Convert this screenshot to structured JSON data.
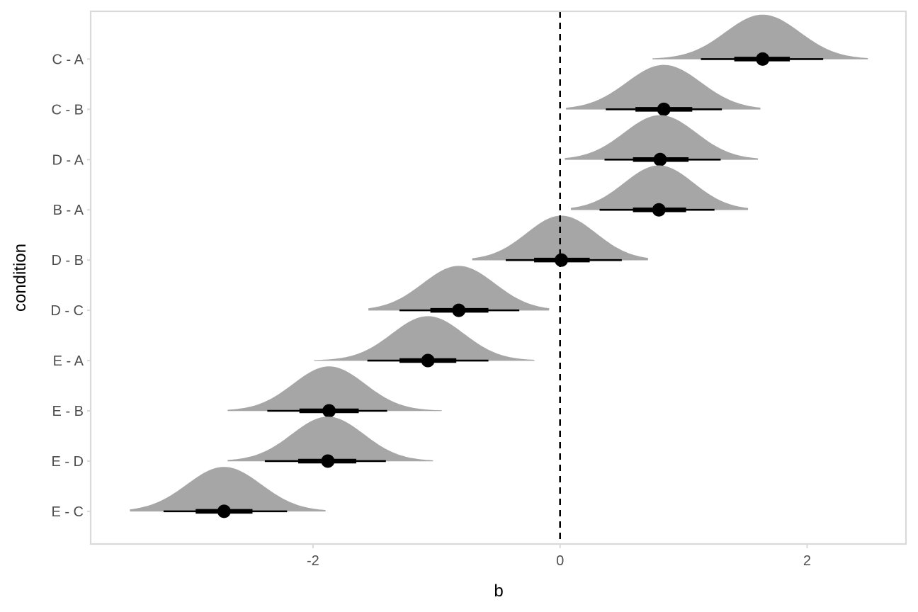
{
  "chart_data": {
    "type": "halfeye",
    "title": "",
    "xlabel": "b",
    "ylabel": "condition",
    "xlim": [
      -3.8,
      2.8
    ],
    "x_ticks": [
      -2,
      0,
      2
    ],
    "x_tick_labels": [
      "-2",
      "0",
      "2"
    ],
    "reference_line": {
      "x": 0,
      "style": "dashed"
    },
    "grid": false,
    "legend": "none",
    "colors": {
      "density": "#a6a6a6",
      "interval": "#000000",
      "reference": "#000000",
      "panel_border": "#d9d9d9"
    },
    "categories": [
      "C - A",
      "C - B",
      "D - A",
      "B - A",
      "D - B",
      "D - C",
      "E - A",
      "E - B",
      "E - D",
      "E - C"
    ],
    "rows": [
      {
        "label": "C - A",
        "median": 1.64,
        "ci66": [
          1.41,
          1.86
        ],
        "ci95": [
          1.14,
          2.13
        ],
        "range": [
          0.75,
          2.49
        ],
        "sd": 0.3
      },
      {
        "label": "C - B",
        "median": 0.84,
        "ci66": [
          0.61,
          1.07
        ],
        "ci95": [
          0.37,
          1.31
        ],
        "range": [
          0.05,
          1.62
        ],
        "sd": 0.3
      },
      {
        "label": "D - A",
        "median": 0.81,
        "ci66": [
          0.59,
          1.04
        ],
        "ci95": [
          0.36,
          1.3
        ],
        "range": [
          0.04,
          1.6
        ],
        "sd": 0.29
      },
      {
        "label": "B - A",
        "median": 0.8,
        "ci66": [
          0.59,
          1.02
        ],
        "ci95": [
          0.32,
          1.25
        ],
        "range": [
          0.09,
          1.52
        ],
        "sd": 0.28
      },
      {
        "label": "D - B",
        "median": 0.01,
        "ci66": [
          -0.21,
          0.24
        ],
        "ci95": [
          -0.44,
          0.5
        ],
        "range": [
          -0.71,
          0.71
        ],
        "sd": 0.28
      },
      {
        "label": "D - C",
        "median": -0.82,
        "ci66": [
          -1.05,
          -0.58
        ],
        "ci95": [
          -1.3,
          -0.33
        ],
        "range": [
          -1.55,
          -0.09
        ],
        "sd": 0.29
      },
      {
        "label": "E - A",
        "median": -1.07,
        "ci66": [
          -1.3,
          -0.84
        ],
        "ci95": [
          -1.56,
          -0.58
        ],
        "range": [
          -1.99,
          -0.21
        ],
        "sd": 0.29
      },
      {
        "label": "E - B",
        "median": -1.87,
        "ci66": [
          -2.11,
          -1.63
        ],
        "ci95": [
          -2.37,
          -1.4
        ],
        "range": [
          -2.69,
          -0.96
        ],
        "sd": 0.29
      },
      {
        "label": "E - D",
        "median": -1.88,
        "ci66": [
          -2.12,
          -1.65
        ],
        "ci95": [
          -2.39,
          -1.41
        ],
        "range": [
          -2.69,
          -1.03
        ],
        "sd": 0.29
      },
      {
        "label": "E - C",
        "median": -2.72,
        "ci66": [
          -2.95,
          -2.49
        ],
        "ci95": [
          -3.21,
          -2.21
        ],
        "range": [
          -3.48,
          -1.9
        ],
        "sd": 0.3
      }
    ]
  }
}
